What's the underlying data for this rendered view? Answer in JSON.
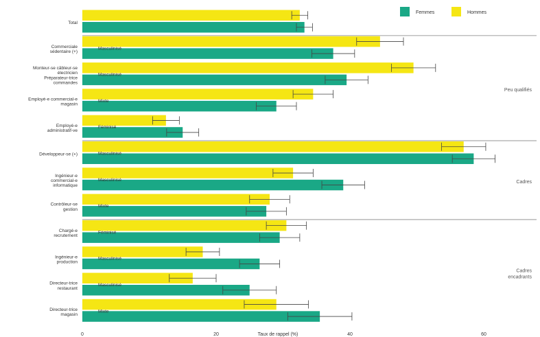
{
  "chart_data": {
    "type": "bar",
    "orientation": "horizontal",
    "title": "",
    "xlabel": "Taux de rappel (%)",
    "ylabel": "",
    "xlim": [
      0,
      68
    ],
    "xticks": [
      0,
      20,
      40,
      60
    ],
    "grid": false,
    "legend_position": "top-right",
    "colors": {
      "femmes": "#1aa886",
      "hommes": "#f5e614",
      "error_bar": "#444444",
      "separator": "#aaaaaa"
    },
    "series_names": {
      "femmes": "Femmes",
      "hommes": "Hommes"
    },
    "categories": [
      {
        "label": [
          "Total"
        ],
        "hommes": 32.5,
        "hommes_ci": 1.2,
        "femmes": 33.2,
        "femmes_ci": 1.2,
        "tag": ""
      },
      {
        "label": [
          "Commerciale",
          "sédentaire (+)"
        ],
        "hommes": 44.5,
        "hommes_ci": 3.5,
        "femmes": 37.5,
        "femmes_ci": 3.2,
        "tag": "Masculinisé"
      },
      {
        "label": [
          "Monteur-se câbleur-se",
          "électricien",
          "Préparateur-trice",
          "commandes"
        ],
        "hommes": 49.5,
        "hommes_ci": 3.3,
        "femmes": 39.5,
        "femmes_ci": 3.2,
        "tag": "Masculinisé"
      },
      {
        "label": [
          "Employé-e commercial-e",
          "magasin"
        ],
        "hommes": 34.5,
        "hommes_ci": 3.0,
        "femmes": 29.0,
        "femmes_ci": 3.0,
        "tag": "Mixte"
      },
      {
        "label": [
          "Employé-e",
          "administratif-ve"
        ],
        "hommes": 12.5,
        "hommes_ci": 2.0,
        "femmes": 15.0,
        "femmes_ci": 2.4,
        "tag": "Féminisé"
      },
      {
        "label": [
          "Développeur-se (+)"
        ],
        "hommes": 57.0,
        "hommes_ci": 3.3,
        "femmes": 58.5,
        "femmes_ci": 3.2,
        "tag": "Masculinisé"
      },
      {
        "label": [
          "Ingénieur-e",
          "commercial-e",
          "informatique"
        ],
        "hommes": 31.5,
        "hommes_ci": 3.0,
        "femmes": 39.0,
        "femmes_ci": 3.2,
        "tag": "Masculinisé"
      },
      {
        "label": [
          "Contrôleur-se",
          "gestion"
        ],
        "hommes": 28.0,
        "hommes_ci": 3.0,
        "femmes": 27.5,
        "femmes_ci": 3.0,
        "tag": "Mixte"
      },
      {
        "label": [
          "Chargé-e",
          "recrutement"
        ],
        "hommes": 30.5,
        "hommes_ci": 3.0,
        "femmes": 29.5,
        "femmes_ci": 3.0,
        "tag": "Féminisé"
      },
      {
        "label": [
          "Ingénieur-e",
          "production"
        ],
        "hommes": 18.0,
        "hommes_ci": 2.5,
        "femmes": 26.5,
        "femmes_ci": 3.0,
        "tag": "Masculinisé"
      },
      {
        "label": [
          "Directeur-trice",
          "restaurant"
        ],
        "hommes": 16.5,
        "hommes_ci": 3.5,
        "femmes": 25.0,
        "femmes_ci": 4.0,
        "tag": "Masculinisé"
      },
      {
        "label": [
          "Directeur-trice",
          "magasin"
        ],
        "hommes": 29.0,
        "hommes_ci": 4.8,
        "femmes": 35.5,
        "femmes_ci": 4.8,
        "tag": "Mixte"
      }
    ],
    "groups": [
      {
        "label": [
          "Peu qualifiés"
        ],
        "from": 1,
        "to": 4
      },
      {
        "label": [
          "Cadres"
        ],
        "from": 5,
        "to": 7
      },
      {
        "label": [
          "Cadres",
          "encadrants"
        ],
        "from": 8,
        "to": 11
      }
    ]
  }
}
